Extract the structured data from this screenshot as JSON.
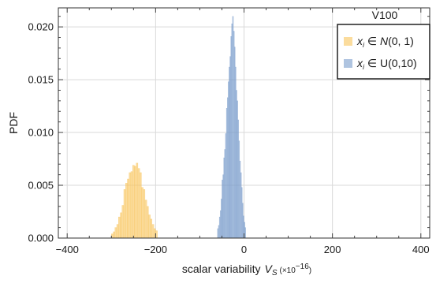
{
  "chart_data": {
    "type": "bar",
    "subtype": "overlaid-histogram",
    "title": "",
    "xlabel": "scalar variability",
    "xlabel_symbol": "V",
    "xlabel_subscript": "S",
    "xlabel_units": "(×10",
    "xlabel_units_exp": "−16",
    "xlabel_units_close": ")",
    "ylabel": "PDF",
    "xlim": [
      -420,
      420
    ],
    "ylim": [
      0,
      0.0218
    ],
    "x_ticks": [
      -400,
      -200,
      0,
      200,
      400
    ],
    "x_tick_labels": [
      "−400",
      "−200",
      "0",
      "200",
      "400"
    ],
    "y_ticks": [
      0.0,
      0.005,
      0.01,
      0.015,
      0.02
    ],
    "y_tick_labels": [
      "0.000",
      "0.005",
      "0.010",
      "0.015",
      "0.020"
    ],
    "grid": true,
    "legend_position": "top-right",
    "legend_title": "V100",
    "series": [
      {
        "name": "x_i ∈ N(0, 1)",
        "legend_label": {
          "var": "x",
          "sub": "i",
          "rel": " ∈ ",
          "dist": "N",
          "args": "(0, 1)"
        },
        "color": "#f8c45c",
        "opacity": 0.6,
        "bin_width": 4,
        "x_range": [
          -300,
          300
        ],
        "values": [
          0.0004,
          0.0006,
          0.001,
          0.0013,
          0.002,
          0.0024,
          0.0031,
          0.0046,
          0.0052,
          0.0056,
          0.0062,
          0.0063,
          0.0069,
          0.0068,
          0.0071,
          0.0066,
          0.0062,
          0.0048,
          0.0046,
          0.0036,
          0.003,
          0.0022,
          0.0018,
          0.0013,
          0.0009,
          0.0007
        ]
      },
      {
        "name": "x_i ∈ U(0,10)",
        "legend_label": {
          "var": "x",
          "sub": "i",
          "rel": " ∈ ",
          "dist": "U",
          "args": "(0,10)"
        },
        "color": "#7a9ccb",
        "opacity": 0.6,
        "bin_width": 2,
        "x_range": [
          -60,
          60
        ],
        "values": [
          0.0009,
          0.0012,
          0.002,
          0.0026,
          0.0037,
          0.0055,
          0.006,
          0.0076,
          0.0084,
          0.0099,
          0.0123,
          0.0133,
          0.0148,
          0.0162,
          0.0172,
          0.0191,
          0.0203,
          0.021,
          0.0196,
          0.0181,
          0.0162,
          0.014,
          0.013,
          0.0112,
          0.0092,
          0.0073,
          0.0062,
          0.0048,
          0.0033,
          0.0021,
          0.0015,
          0.001
        ]
      }
    ]
  }
}
